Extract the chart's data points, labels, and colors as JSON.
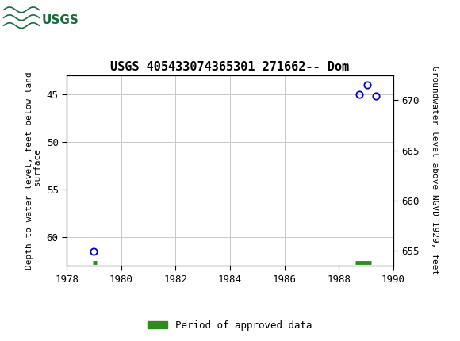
{
  "title": "USGS 405433074365301 271662-- Dom",
  "ylabel_left": "Depth to water level, feet below land\n surface",
  "ylabel_right": "Groundwater level above NGVD 1929, feet",
  "xlim": [
    1978,
    1990
  ],
  "ylim_left": [
    63,
    43
  ],
  "ylim_right": [
    653.5,
    672.5
  ],
  "xticks": [
    1978,
    1980,
    1982,
    1984,
    1986,
    1988,
    1990
  ],
  "yticks_left": [
    45,
    50,
    55,
    60
  ],
  "yticks_right": [
    670,
    665,
    660,
    655
  ],
  "scatter_x": [
    1979.0,
    1988.75,
    1989.05,
    1989.35
  ],
  "scatter_y": [
    61.5,
    45.0,
    44.0,
    45.2
  ],
  "scatter_color": "#0000cc",
  "green_bars": [
    {
      "x_start": 1978.95,
      "x_end": 1979.1,
      "y": 62.6
    },
    {
      "x_start": 1988.6,
      "x_end": 1989.2,
      "y": 62.6
    }
  ],
  "green_color": "#2e8b1e",
  "header_color": "#1a6b3c",
  "background_color": "#ffffff",
  "grid_color": "#c8c8c8",
  "legend_label": "Period of approved data",
  "font_family": "monospace"
}
